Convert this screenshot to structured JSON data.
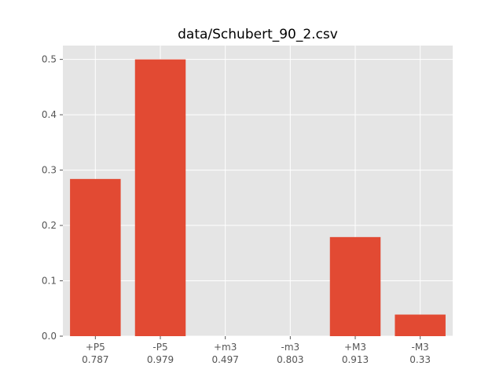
{
  "chart_data": {
    "type": "bar",
    "title": "data/Schubert_90_2.csv",
    "xlabel": "",
    "ylabel": "",
    "categories": [
      "+P5",
      "-P5",
      "+m3",
      "-m3",
      "+M3",
      "-M3"
    ],
    "category_sublabels": [
      "0.787",
      "0.979",
      "0.497",
      "0.803",
      "0.913",
      "0.33"
    ],
    "values": [
      0.284,
      0.5,
      0.0,
      0.0,
      0.179,
      0.039
    ],
    "ylim": [
      0,
      0.525
    ],
    "yticks": [
      0.0,
      0.1,
      0.2,
      0.3,
      0.4,
      0.5
    ],
    "ytick_labels": [
      "0.0",
      "0.1",
      "0.2",
      "0.3",
      "0.4",
      "0.5"
    ],
    "grid": true,
    "bar_color": "#E24A33",
    "plot_background": "#E5E5E5",
    "grid_color": "#FFFFFF"
  }
}
